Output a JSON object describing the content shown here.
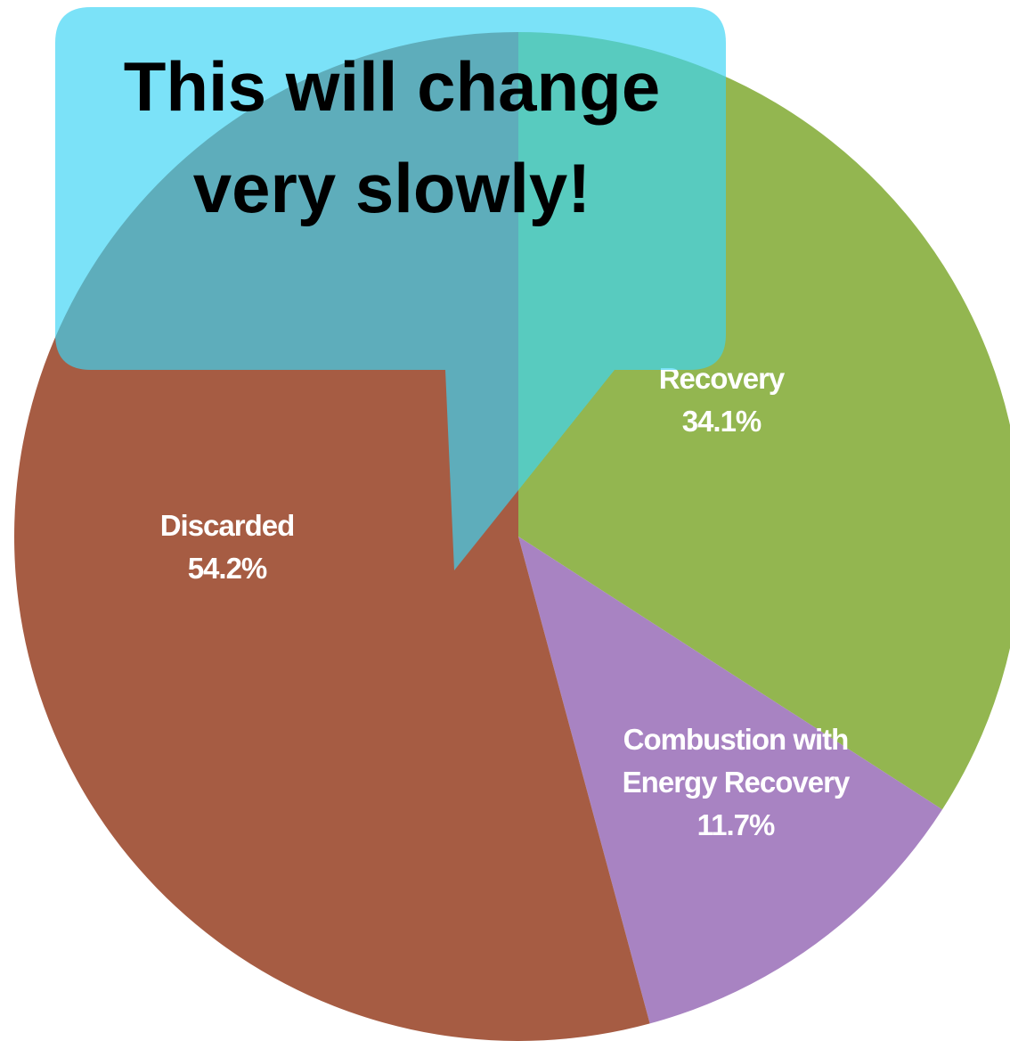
{
  "chart_data": {
    "type": "pie",
    "categories": [
      "Recovery",
      "Combustion with Energy Recovery",
      "Discarded"
    ],
    "values": [
      34.1,
      11.7,
      54.2
    ],
    "value_labels": [
      "34.1%",
      "11.7%",
      "54.2%"
    ],
    "colors": [
      "#93b650",
      "#a883c2",
      "#a65c43"
    ],
    "annotation": "This will change very slowly!"
  }
}
